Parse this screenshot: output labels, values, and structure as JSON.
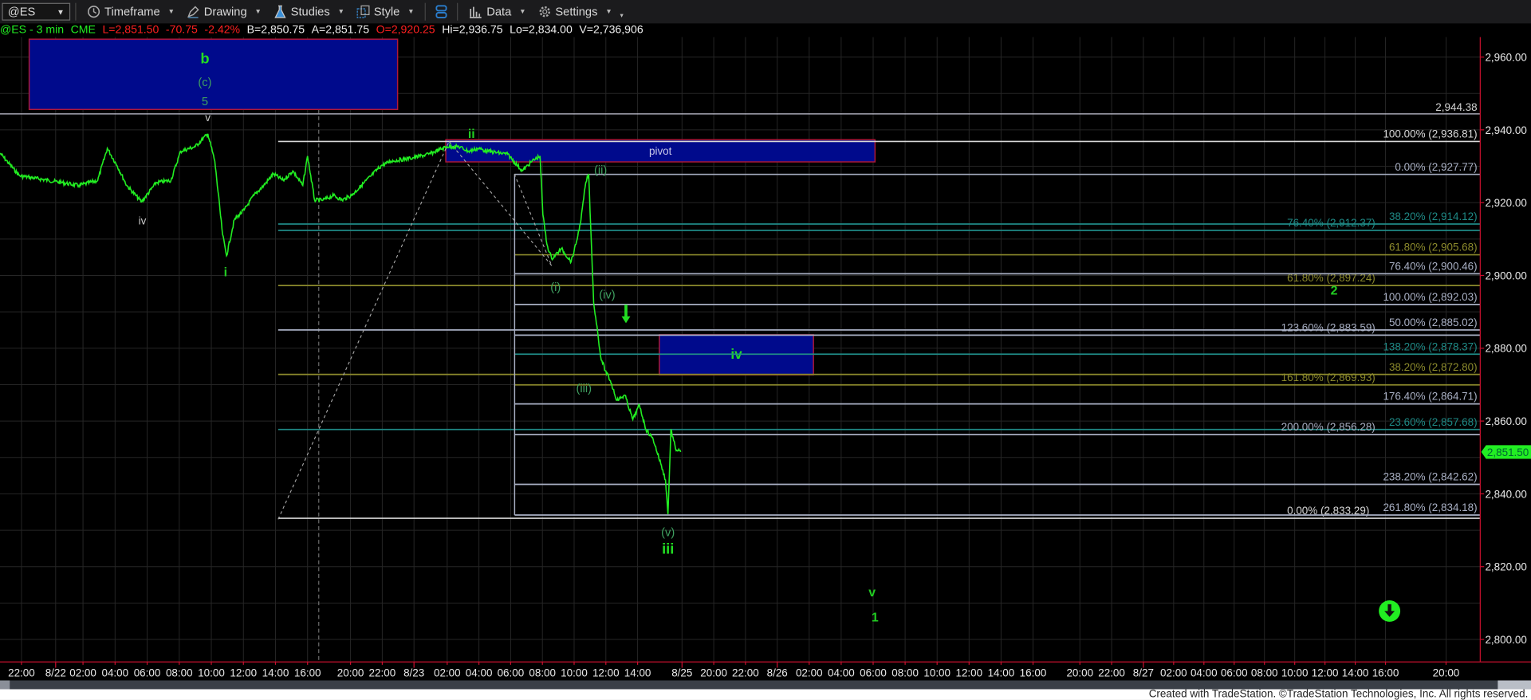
{
  "toolbar": {
    "symbol": "@ES",
    "items": [
      {
        "label": "Timeframe",
        "icon": "clock-icon"
      },
      {
        "label": "Drawing",
        "icon": "pen-icon"
      },
      {
        "label": "Studies",
        "icon": "flask-icon"
      },
      {
        "label": "Style",
        "icon": "style-icon"
      },
      {
        "label": "Data",
        "icon": "bar-chart-icon"
      },
      {
        "label": "Settings",
        "icon": "gear-icon"
      }
    ]
  },
  "quote": {
    "symbol_interval": "@ES - 3 min",
    "exchange": "CME",
    "last": "L=2,851.50",
    "change": "-70.75",
    "change_pct": "-2.42%",
    "bid": "B=2,850.75",
    "ask": "A=2,851.75",
    "open": "O=2,920.25",
    "high": "Hi=2,936.75",
    "low": "Lo=2,834.00",
    "volume": "V=2,736,906"
  },
  "colors": {
    "price": "#22ee22",
    "box_fill": "#000a8c",
    "box_border": "#b01838",
    "axis": "#c8102e",
    "fib_gray": "#a9b0c4",
    "fib_teal": "#1f8a86",
    "fib_olive": "#8c8a2c",
    "fib_white": "#d8d8d8",
    "last_tag": "#22ee22"
  },
  "chart_data": {
    "type": "line",
    "instrument": "@ES",
    "interval": "3 min",
    "price_axis": {
      "ticks": [
        "2,960.00",
        "2,940.00",
        "2,920.00",
        "2,900.00",
        "2,880.00",
        "2,860.00",
        "2,840.00",
        "2,820.00",
        "2,800.00"
      ],
      "tick_values": [
        2960,
        2940,
        2920,
        2900,
        2880,
        2860,
        2840,
        2820,
        2800
      ],
      "ylim": [
        2794,
        2972
      ]
    },
    "last_price": {
      "value": 2851.5,
      "label": "2,851.50"
    },
    "time_axis": [
      {
        "label": "22:00",
        "time": "08/21 22:00"
      },
      {
        "label": "8/22",
        "time": "08/22 00:00"
      },
      {
        "label": "02:00",
        "time": "08/22 02:00"
      },
      {
        "label": "04:00",
        "time": "08/22 04:00"
      },
      {
        "label": "06:00",
        "time": "08/22 06:00"
      },
      {
        "label": "08:00",
        "time": "08/22 08:00"
      },
      {
        "label": "10:00",
        "time": "08/22 10:00"
      },
      {
        "label": "12:00",
        "time": "08/22 12:00"
      },
      {
        "label": "14:00",
        "time": "08/22 14:00"
      },
      {
        "label": "16:00",
        "time": "08/22 16:00"
      },
      {
        "label": "20:00",
        "time": "08/22 20:00"
      },
      {
        "label": "22:00",
        "time": "08/22 22:00"
      },
      {
        "label": "8/23",
        "time": "08/23 00:00"
      },
      {
        "label": "02:00",
        "time": "08/23 02:00"
      },
      {
        "label": "04:00",
        "time": "08/23 04:00"
      },
      {
        "label": "06:00",
        "time": "08/23 06:00"
      },
      {
        "label": "08:00",
        "time": "08/23 08:00"
      },
      {
        "label": "10:00",
        "time": "08/23 10:00"
      },
      {
        "label": "12:00",
        "time": "08/23 12:00"
      },
      {
        "label": "14:00",
        "time": "08/23 14:00"
      },
      {
        "label": "8/25",
        "time": "08/25 18:00"
      },
      {
        "label": "20:00",
        "time": "08/25 20:00"
      },
      {
        "label": "22:00",
        "time": "08/25 22:00"
      },
      {
        "label": "8/26",
        "time": "08/26 00:00"
      },
      {
        "label": "02:00",
        "time": "08/26 02:00"
      },
      {
        "label": "04:00",
        "time": "08/26 04:00"
      },
      {
        "label": "06:00",
        "time": "08/26 06:00"
      },
      {
        "label": "08:00",
        "time": "08/26 08:00"
      },
      {
        "label": "10:00",
        "time": "08/26 10:00"
      },
      {
        "label": "12:00",
        "time": "08/26 12:00"
      },
      {
        "label": "14:00",
        "time": "08/26 14:00"
      },
      {
        "label": "16:00",
        "time": "08/26 16:00"
      },
      {
        "label": "20:00",
        "time": "08/26 20:00"
      },
      {
        "label": "22:00",
        "time": "08/26 22:00"
      },
      {
        "label": "8/27",
        "time": "08/27 00:00"
      },
      {
        "label": "02:00",
        "time": "08/27 02:00"
      },
      {
        "label": "04:00",
        "time": "08/27 04:00"
      },
      {
        "label": "06:00",
        "time": "08/27 06:00"
      },
      {
        "label": "08:00",
        "time": "08/27 08:00"
      },
      {
        "label": "10:00",
        "time": "08/27 10:00"
      },
      {
        "label": "12:00",
        "time": "08/27 12:00"
      },
      {
        "label": "14:00",
        "time": "08/27 14:00"
      },
      {
        "label": "16:00",
        "time": "08/27 16:00"
      },
      {
        "label": "20:00",
        "time": "08/27 20:00"
      }
    ],
    "price_series": [
      [
        "08/21 20:45",
        2933.6
      ],
      [
        "08/21 21:53",
        2927.4
      ],
      [
        "08/21 23:36",
        2926.1
      ],
      [
        "08/22 01:42",
        2924.7
      ],
      [
        "08/22 02:55",
        2926.1
      ],
      [
        "08/22 03:31",
        2934.9
      ],
      [
        "08/22 04:08",
        2930.1
      ],
      [
        "08/22 04:44",
        2924.7
      ],
      [
        "08/22 05:39",
        2920.2
      ],
      [
        "08/22 06:34",
        2925.5
      ],
      [
        "08/22 07:29",
        2926.1
      ],
      [
        "08/22 08:05",
        2934.1
      ],
      [
        "08/22 09:00",
        2935.4
      ],
      [
        "08/22 09:47",
        2938.9
      ],
      [
        "08/22 10:13",
        2931.4
      ],
      [
        "08/22 10:42",
        2911.3
      ],
      [
        "08/22 10:57",
        2905.4
      ],
      [
        "08/22 11:26",
        2915.3
      ],
      [
        "08/22 12:03",
        2918.0
      ],
      [
        "08/22 12:39",
        2922.0
      ],
      [
        "08/22 13:16",
        2924.7
      ],
      [
        "08/22 13:52",
        2927.9
      ],
      [
        "08/22 14:29",
        2926.1
      ],
      [
        "08/22 15:05",
        2928.7
      ],
      [
        "08/22 15:42",
        2924.7
      ],
      [
        "08/22 16:00",
        2932.8
      ],
      [
        "08/22 17:10",
        2920.7
      ],
      [
        "08/22 17:50",
        2920.7
      ],
      [
        "08/22 18:40",
        2922.0
      ],
      [
        "08/22 19:20",
        2920.7
      ],
      [
        "08/22 20:04",
        2922.0
      ],
      [
        "08/22 20:41",
        2924.7
      ],
      [
        "08/22 21:18",
        2927.4
      ],
      [
        "08/22 21:55",
        2930.1
      ],
      [
        "08/22 22:32",
        2931.4
      ],
      [
        "08/22 23:46",
        2932.2
      ],
      [
        "08/23 00:53",
        2933.3
      ],
      [
        "08/23 02:00",
        2935.4
      ],
      [
        "08/23 02:44",
        2935.4
      ],
      [
        "08/23 03:21",
        2934.1
      ],
      [
        "08/23 03:58",
        2934.9
      ],
      [
        "08/23 04:35",
        2934.1
      ],
      [
        "08/23 05:49",
        2933.3
      ],
      [
        "08/23 06:44",
        2928.7
      ],
      [
        "08/23 07:21",
        2931.4
      ],
      [
        "08/23 07:51",
        2932.8
      ],
      [
        "08/23 08:02",
        2916.7
      ],
      [
        "08/23 08:17",
        2908.6
      ],
      [
        "08/23 08:35",
        2904.6
      ],
      [
        "08/23 09:12",
        2907.3
      ],
      [
        "08/23 09:49",
        2903.8
      ],
      [
        "08/23 10:07",
        2908.6
      ],
      [
        "08/23 10:26",
        2915.3
      ],
      [
        "08/23 10:44",
        2925.5
      ],
      [
        "08/23 10:55",
        2927.9
      ],
      [
        "08/23 11:03",
        2912.7
      ],
      [
        "08/23 11:14",
        2892.5
      ],
      [
        "08/23 11:29",
        2884.5
      ],
      [
        "08/23 11:40",
        2877.8
      ],
      [
        "08/23 11:58",
        2873.8
      ],
      [
        "08/23 12:17",
        2871.1
      ],
      [
        "08/23 12:42",
        2865.7
      ],
      [
        "08/23 13:12",
        2867.1
      ],
      [
        "08/23 13:42",
        2860.4
      ],
      [
        "08/23 14:05",
        2864.4
      ],
      [
        "08/23 14:23",
        2857.7
      ],
      [
        "08/23 14:43",
        2855.0
      ],
      [
        "08/23 15:04",
        2848.3
      ],
      [
        "08/23 15:17",
        2843.8
      ],
      [
        "08/23 15:24",
        2834.4
      ],
      [
        "08/23 15:32",
        2857.7
      ],
      [
        "08/23 15:45",
        2852.3
      ],
      [
        "08/23 15:59",
        2851.5
      ]
    ],
    "horizontal_lines": [
      {
        "price": 2944.38,
        "label": "2,944.38"
      }
    ],
    "fib_sets": [
      {
        "start": "08/22 14:10",
        "levels": [
          {
            "label": "100.00% (2,936.81)",
            "price": 2936.81,
            "color": "white"
          },
          {
            "label": "38.20% (2,914.12)",
            "price": 2914.12,
            "color": "teal"
          },
          {
            "label": "76.40% (2,912.37)",
            "price": 2912.37,
            "color": "teal"
          },
          {
            "label": "61.80% (2,897.24)",
            "price": 2897.24,
            "color": "olive"
          },
          {
            "label": "50.00% (2,885.02)",
            "price": 2885.02,
            "color": "gray"
          },
          {
            "label": "38.20% (2,872.80)",
            "price": 2872.8,
            "color": "olive"
          },
          {
            "label": "23.60% (2,857.68)",
            "price": 2857.68,
            "color": "teal"
          },
          {
            "label": "0.00% (2,833.29)",
            "price": 2833.29,
            "color": "white"
          }
        ]
      },
      {
        "start": "08/23 06:15",
        "levels": [
          {
            "label": "0.00% (2,927.77)",
            "price": 2927.77,
            "color": "gray"
          },
          {
            "label": "61.80% (2,905.68)",
            "price": 2905.68,
            "color": "olive"
          },
          {
            "label": "76.40% (2,900.46)",
            "price": 2900.46,
            "color": "gray"
          },
          {
            "label": "100.00% (2,892.03)",
            "price": 2892.03,
            "color": "gray"
          },
          {
            "label": "123.60% (2,883.59)",
            "price": 2883.59,
            "color": "gray"
          },
          {
            "label": "138.20% (2,878.37)",
            "price": 2878.37,
            "color": "teal"
          },
          {
            "label": "161.80% (2,869.93)",
            "price": 2869.93,
            "color": "olive"
          },
          {
            "label": "176.40% (2,864.71)",
            "price": 2864.71,
            "color": "gray"
          },
          {
            "label": "200.00% (2,856.28)",
            "price": 2856.28,
            "color": "gray"
          },
          {
            "label": "238.20% (2,842.62)",
            "price": 2842.62,
            "color": "gray"
          },
          {
            "label": "261.80% (2,834.18)",
            "price": 2834.18,
            "color": "gray"
          }
        ]
      }
    ],
    "boxes": [
      {
        "name": "b-target-box",
        "t1": "08/21 22:27",
        "t2": "08/22 22:58",
        "p1": 2964.9,
        "p2": 2945.6,
        "label": ""
      },
      {
        "name": "pivot-box",
        "t1": "08/23 01:55",
        "t2": "08/26 06:07",
        "p1": 2937.3,
        "p2": 2931.2,
        "label": "pivot"
      },
      {
        "name": "wave-iv-box",
        "t1": "08/23 15:00",
        "t2": "08/26 02:16",
        "p1": 2883.7,
        "p2": 2872.7,
        "label": "iv"
      }
    ],
    "trendlines": [
      {
        "t1": "08/22 14:10",
        "p1": 2833.0,
        "t2": "08/23 02:07",
        "p2": 2936.8
      },
      {
        "t1": "08/23 02:07",
        "p1": 2936.8,
        "t2": "08/23 08:35",
        "p2": 2902.7
      },
      {
        "t1": "08/23 06:14",
        "p1": 2927.9,
        "t2": "08/23 08:35",
        "p2": 2902.7
      }
    ],
    "session_marker": "08/22 17:30",
    "wave_labels": [
      {
        "text": "b",
        "time": "08/22 09:36",
        "price": 2959.3,
        "style": "bold-green"
      },
      {
        "text": "(c)",
        "time": "08/22 09:36",
        "price": 2953.1,
        "style": "dim-green"
      },
      {
        "text": "5",
        "time": "08/22 09:36",
        "price": 2947.8,
        "style": "dim-green"
      },
      {
        "text": "v",
        "time": "08/22 09:47",
        "price": 2943.5,
        "style": "white"
      },
      {
        "text": "iv",
        "time": "08/22 05:42",
        "price": 2915.1,
        "style": "white"
      },
      {
        "text": "i",
        "time": "08/22 10:53",
        "price": 2900.9,
        "style": "green"
      },
      {
        "text": "ii",
        "time": "08/23 03:32",
        "price": 2938.9,
        "style": "green"
      },
      {
        "text": "(ii)",
        "time": "08/23 11:40",
        "price": 2929.0,
        "style": "dim-green"
      },
      {
        "text": "(i)",
        "time": "08/23 08:50",
        "price": 2896.8,
        "style": "dim-green"
      },
      {
        "text": "(iv)",
        "time": "08/23 12:05",
        "price": 2894.7,
        "style": "dim-green"
      },
      {
        "text": "(iii)",
        "time": "08/23 10:37",
        "price": 2869.0,
        "style": "dim-green"
      },
      {
        "text": "(v)",
        "time": "08/23 15:24",
        "price": 2829.5,
        "style": "dim-green"
      },
      {
        "text": "iii",
        "time": "08/23 15:24",
        "price": 2825.3,
        "style": "bold-green"
      },
      {
        "text": "2",
        "time": "08/27 12:36",
        "price": 2895.8,
        "style": "green"
      },
      {
        "text": "v",
        "time": "08/26 05:56",
        "price": 2812.9,
        "style": "green"
      },
      {
        "text": "1",
        "time": "08/26 06:07",
        "price": 2806.0,
        "style": "green"
      }
    ],
    "arrows": [
      {
        "icon": "down-arrow-icon",
        "time": "08/23 13:16",
        "price": 2889.3
      },
      {
        "icon": "circle-down-arrow-icon",
        "time": "08/27 16:16",
        "price": 2807.8
      }
    ]
  },
  "footer": "Created with TradeStation. ©TradeStation Technologies, Inc. All rights reserved."
}
